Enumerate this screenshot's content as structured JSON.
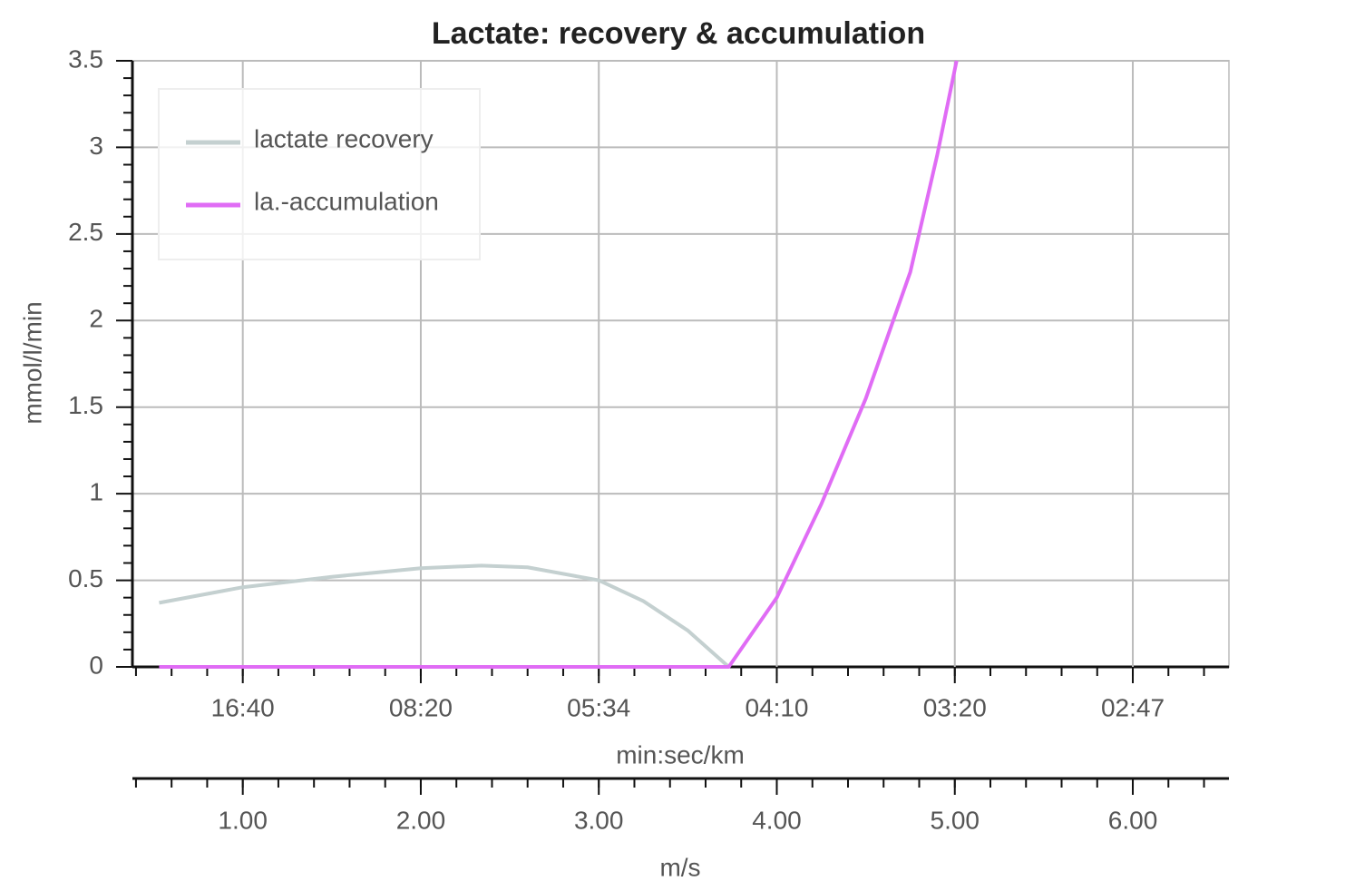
{
  "chart_data": {
    "type": "line",
    "title": "Lactate: recovery & accumulation",
    "ylabel": "mmol/l/min",
    "xlabel": "min:sec/km",
    "x2label": "m/s",
    "xlim": [
      0.38,
      6.54
    ],
    "ylim": [
      0,
      3.5
    ],
    "yticks": [
      0,
      0.5,
      1,
      1.5,
      2,
      2.5,
      3,
      3.5
    ],
    "xticks": [
      {
        "value": 1,
        "label": "16:40"
      },
      {
        "value": 2,
        "label": "08:20"
      },
      {
        "value": 3,
        "label": "05:34"
      },
      {
        "value": 4,
        "label": "04:10"
      },
      {
        "value": 5,
        "label": "03:20"
      },
      {
        "value": 6,
        "label": "02:47"
      }
    ],
    "x2ticks": [
      {
        "value": 1,
        "label": "1.00"
      },
      {
        "value": 2,
        "label": "2.00"
      },
      {
        "value": 3,
        "label": "3.00"
      },
      {
        "value": 4,
        "label": "4.00"
      },
      {
        "value": 5,
        "label": "5.00"
      },
      {
        "value": 6,
        "label": "6.00"
      }
    ],
    "grid": true,
    "legend": "upper left",
    "series": [
      {
        "name": "lactate recovery",
        "color": "#c4d0d0",
        "x": [
          0.53,
          1,
          1.5,
          2,
          2.34,
          2.6,
          3,
          3.25,
          3.5,
          3.73
        ],
        "values": [
          0.37,
          0.46,
          0.52,
          0.57,
          0.585,
          0.575,
          0.5,
          0.38,
          0.21,
          0
        ]
      },
      {
        "name": "la.-accumulation",
        "color": "#e06cf5",
        "x": [
          0.53,
          3.73,
          4,
          4.25,
          4.5,
          4.75,
          4.9,
          5.01
        ],
        "values": [
          0,
          0,
          0.4,
          0.94,
          1.55,
          2.28,
          2.95,
          3.5
        ]
      }
    ]
  }
}
